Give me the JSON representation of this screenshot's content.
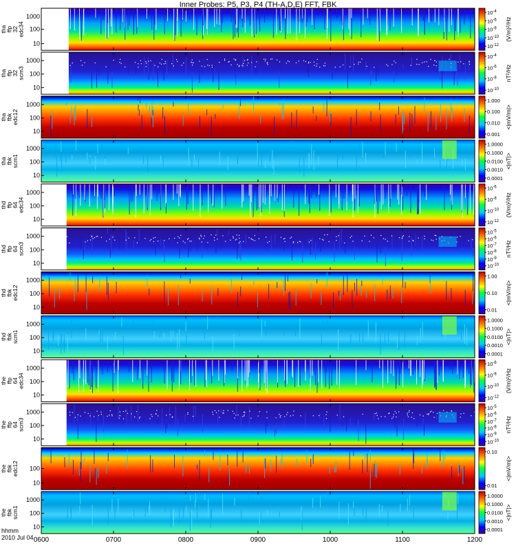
{
  "title": "Inner Probes: P5, P3, P4 (TH-A,D,E) FFT, FBK",
  "footer": {
    "line1": "hhmm",
    "line2": "2010 Jul 04"
  },
  "colors": {
    "low": "#2020d0",
    "high": "#a00000"
  },
  "chart_data": {
    "type": "heatmap",
    "x": {
      "ticks": [
        "0600",
        "0700",
        "0800",
        "0900",
        "1000",
        "1100",
        "1200"
      ],
      "range_hours": [
        6,
        12
      ]
    },
    "panels": [
      {
        "label": [
          "tha",
          "ffp",
          "32",
          "edc34"
        ],
        "yticks": [
          "100",
          "10"
        ],
        "yticks2": [
          "1000"
        ],
        "cbar_ticks": [
          "10^-4",
          "10^-6",
          "10^-8",
          "10^-10",
          "10^-12"
        ],
        "cbar_label": "(V/m)²/Hz",
        "style": "edc34",
        "data_start_hr": 6.38
      },
      {
        "label": [
          "tha",
          "ffp",
          "32",
          "scm3"
        ],
        "yticks": [
          "1000",
          "100",
          "10"
        ],
        "cbar_ticks": [
          "10^-4",
          "10^-6",
          "10^-8",
          "10^-10"
        ],
        "cbar_label": "nT²/Hz",
        "style": "scm3",
        "data_start_hr": 6.38
      },
      {
        "label": [
          "tha",
          "fbk",
          "edc12"
        ],
        "yticks": [
          "1000",
          "100",
          "10"
        ],
        "cbar_ticks": [
          "1.000",
          "0.100",
          "0.010",
          "0.001"
        ],
        "cbar_label": "<|mV/m|>",
        "style": "edc12",
        "data_start_hr": 6.0
      },
      {
        "label": [
          "tha",
          "fbk",
          "scm1"
        ],
        "yticks": [
          "1000",
          "100",
          "10"
        ],
        "cbar_ticks": [
          "1.0000",
          "0.1000",
          "0.0100",
          "0.0010",
          "0.0001"
        ],
        "cbar_label": "<|nT|>",
        "style": "scm1",
        "data_start_hr": 6.0
      },
      {
        "label": [
          "thd",
          "ffp",
          "64",
          "edc34"
        ],
        "yticks": [
          "1000",
          "100",
          "10"
        ],
        "cbar_ticks": [
          "10^-6",
          "10^-8",
          "10^-10",
          "10^-12"
        ],
        "cbar_label": "(V/m)²/Hz",
        "style": "edc34",
        "data_start_hr": 6.35
      },
      {
        "label": [
          "thd",
          "ffp",
          "64",
          "scm3"
        ],
        "yticks": [
          "1000",
          "100",
          "10"
        ],
        "cbar_ticks": [
          "10^-5",
          "10^-6",
          "10^-7",
          "10^-8",
          "10^-9",
          "10^-10"
        ],
        "cbar_label": "nT²/Hz",
        "style": "scm3",
        "data_start_hr": 6.35
      },
      {
        "label": [
          "thd",
          "fbk",
          "edc12"
        ],
        "yticks": [
          "1000",
          "100",
          "10"
        ],
        "cbar_ticks": [
          "1.00",
          "0.10",
          "0.01"
        ],
        "cbar_label": "<|mV/m|>",
        "style": "edc12",
        "data_start_hr": 6.0
      },
      {
        "label": [
          "thd",
          "fbk",
          "scm1"
        ],
        "yticks": [
          "1000",
          "100",
          "10"
        ],
        "cbar_ticks": [
          "1.0000",
          "0.1000",
          "0.0100",
          "0.0010",
          "0.0001"
        ],
        "cbar_label": "<|nT|>",
        "style": "scm1",
        "data_start_hr": 6.0
      },
      {
        "label": [
          "the",
          "ffp",
          "64",
          "edc34"
        ],
        "yticks": [
          "1000",
          "100",
          "10"
        ],
        "cbar_ticks": [
          "10^-6",
          "10^-8",
          "10^-10",
          "10^-12"
        ],
        "cbar_label": "(V/m)²/Hz",
        "style": "edc34",
        "data_start_hr": 6.35
      },
      {
        "label": [
          "the",
          "ffp",
          "64",
          "scm3"
        ],
        "yticks": [
          "1000",
          "100",
          "10"
        ],
        "cbar_ticks": [
          "10^-5",
          "10^-6",
          "10^-7",
          "10^-8",
          "10^-9",
          "10^-10"
        ],
        "cbar_label": "nT²/Hz",
        "style": "scm3",
        "data_start_hr": 6.35
      },
      {
        "label": [
          "the",
          "fbk",
          "edc12"
        ],
        "yticks": [
          "100",
          "10"
        ],
        "cbar_ticks": [
          "0.10",
          "0.01"
        ],
        "cbar_label": "<|mV/m|>",
        "style": "edc12",
        "data_start_hr": 6.0
      },
      {
        "label": [
          "the",
          "fbk",
          "scm1"
        ],
        "yticks": [
          "1000",
          "100",
          "10"
        ],
        "cbar_ticks": [
          "1.0000",
          "0.1000",
          "0.0100",
          "0.0010",
          "0.0001"
        ],
        "cbar_label": "<|nT|>",
        "style": "scm1",
        "data_start_hr": 6.0
      }
    ]
  }
}
